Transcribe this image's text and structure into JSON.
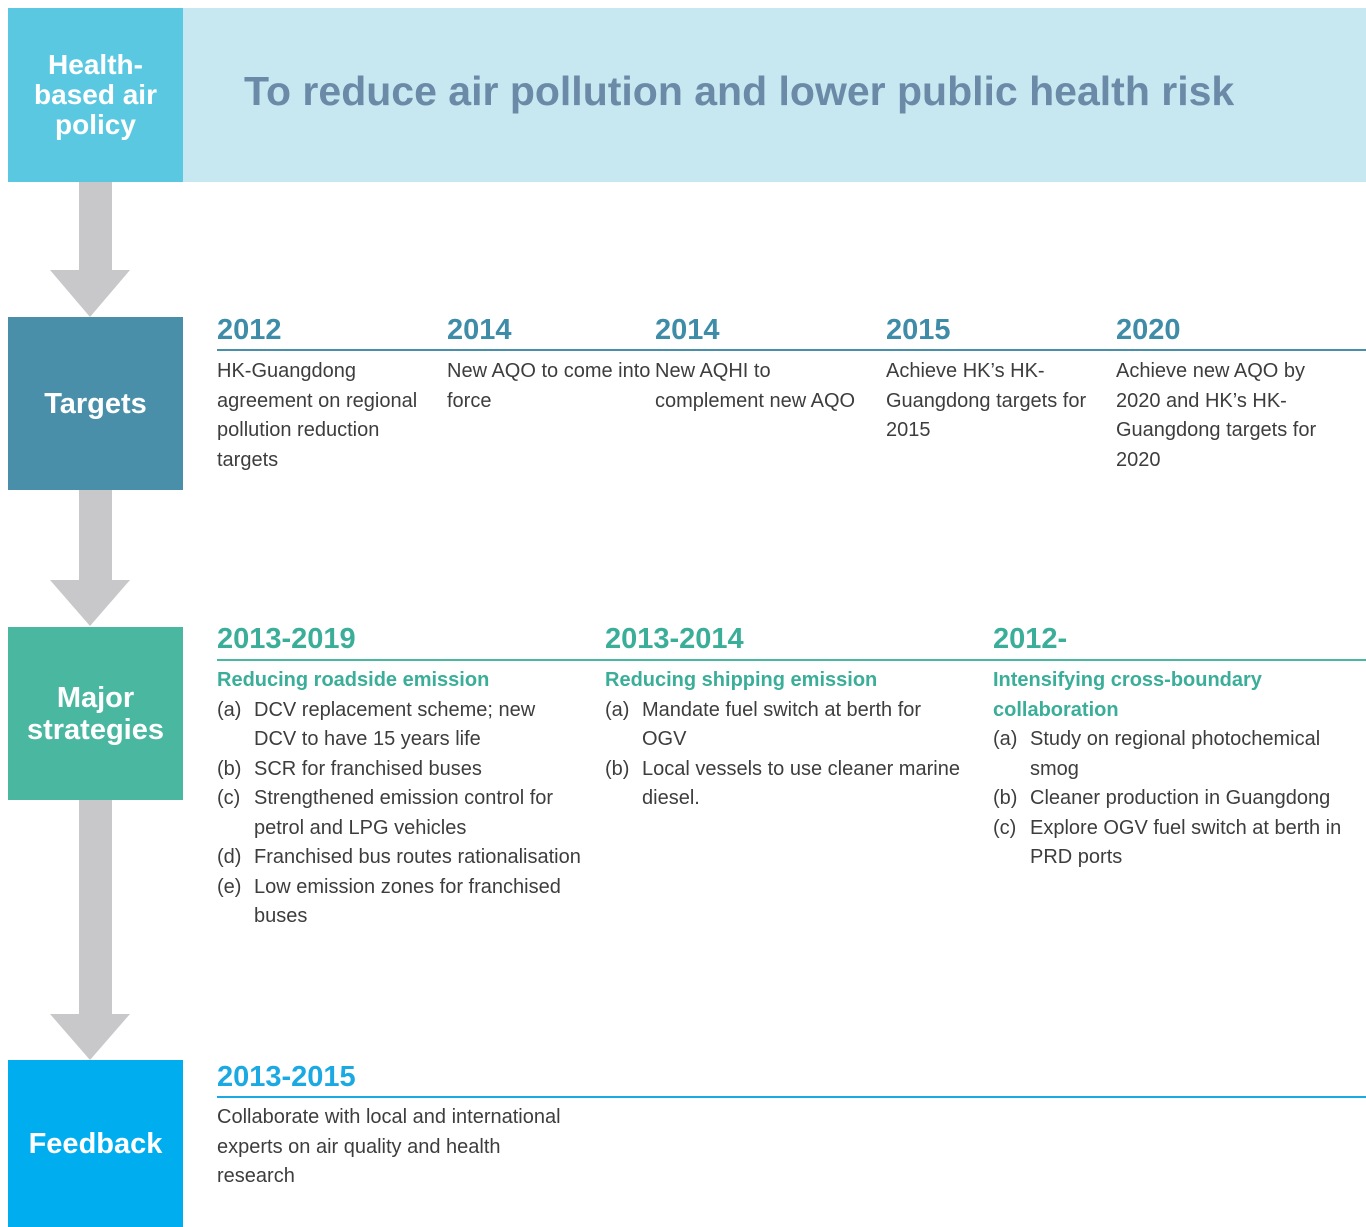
{
  "header": {
    "label": "Health-based air policy",
    "title": "To reduce air pollution and lower public health risk"
  },
  "targets": {
    "label": "Targets",
    "items": [
      {
        "year": "2012",
        "text": "HK-Guangdong agreement on regional pollution reduction targets"
      },
      {
        "year": "2014",
        "text": "New AQO to come into force"
      },
      {
        "year": "2014",
        "text": "New AQHI to complement new AQO"
      },
      {
        "year": "2015",
        "text": "Achieve HK’s HK-Guangdong targets for 2015"
      },
      {
        "year": "2020",
        "text": "Achieve new AQO by 2020 and HK’s HK-Guangdong targets for 2020"
      }
    ]
  },
  "strategies": {
    "label": "Major strategies",
    "items": [
      {
        "period": "2013-2019",
        "heading": "Reducing roadside emission",
        "points": [
          {
            "marker": "(a)",
            "text": "DCV replacement scheme; new DCV to have 15 years life"
          },
          {
            "marker": "(b)",
            "text": "SCR for franchised buses"
          },
          {
            "marker": "(c)",
            "text": "Strengthened emission control for petrol  and LPG vehicles"
          },
          {
            "marker": "(d)",
            "text": "Franchised bus routes rationalisation"
          },
          {
            "marker": "(e)",
            "text": "Low emission zones for franchised buses"
          }
        ]
      },
      {
        "period": "2013-2014",
        "heading": "Reducing shipping emission",
        "points": [
          {
            "marker": "(a)",
            "text": "Mandate fuel switch at berth for OGV"
          },
          {
            "marker": "(b)",
            "text": "Local vessels to use cleaner marine diesel."
          }
        ]
      },
      {
        "period": "2012-",
        "heading": "Intensifying cross-boundary collaboration",
        "points": [
          {
            "marker": "(a)",
            "text": "Study on regional photochemical smog"
          },
          {
            "marker": "(b)",
            "text": "Cleaner production in Guangdong"
          },
          {
            "marker": "(c)",
            "text": "Explore OGV fuel switch at berth in PRD ports"
          }
        ]
      }
    ]
  },
  "feedback": {
    "label": "Feedback",
    "items": [
      {
        "period": "2013-2015",
        "text": "Collaborate with local and international experts on air quality and health research"
      }
    ]
  }
}
